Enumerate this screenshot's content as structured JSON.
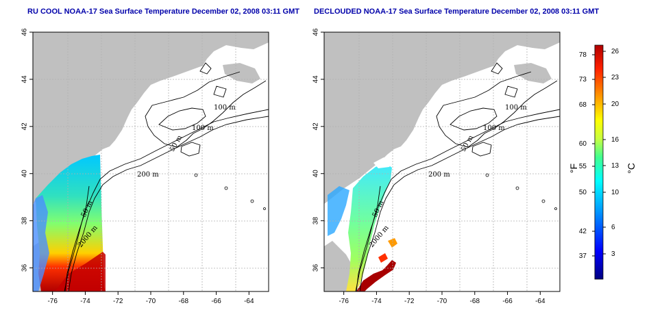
{
  "left_panel": {
    "title": "RU COOL NOAA-17 Sea Surface Temperature December 02, 2008 03:11 GMT"
  },
  "right_panel": {
    "title": "DECLOUDED NOAA-17 Sea Surface Temperature December 02, 2008 03:11 GMT"
  },
  "map_axes": {
    "lon_ticks": [
      "-76",
      "-74",
      "-72",
      "-70",
      "-68",
      "-66",
      "-64"
    ],
    "lat_ticks": [
      "36",
      "38",
      "40",
      "42",
      "44",
      "46"
    ],
    "lon_range": [
      -77.2,
      -62.8
    ],
    "lat_range": [
      35.0,
      46.0
    ],
    "grid": "dotted"
  },
  "contour_labels": {
    "left": [
      "100 m",
      "100 m",
      "50 m",
      "200 m",
      "50 m",
      "2000 m"
    ],
    "right": [
      "100 m",
      "100 m",
      "50 m",
      "200 m",
      "50 m",
      "2000 m"
    ]
  },
  "colorbar": {
    "fahrenheit_ticks": [
      "78",
      "73",
      "68",
      "60",
      "55",
      "50",
      "42",
      "37"
    ],
    "celsius_ticks": [
      "26",
      "23",
      "20",
      "16",
      "13",
      "10",
      "6",
      "3"
    ],
    "fahrenheit_unit": "°F",
    "celsius_unit": "°C",
    "colors": [
      "#000080",
      "#0000ff",
      "#00a0ff",
      "#00ffff",
      "#40ff90",
      "#c8ff40",
      "#ffff00",
      "#ff9900",
      "#ff2000",
      "#b00000"
    ]
  },
  "colors": {
    "land": "#c0c0c0",
    "title": "#0000aa"
  }
}
